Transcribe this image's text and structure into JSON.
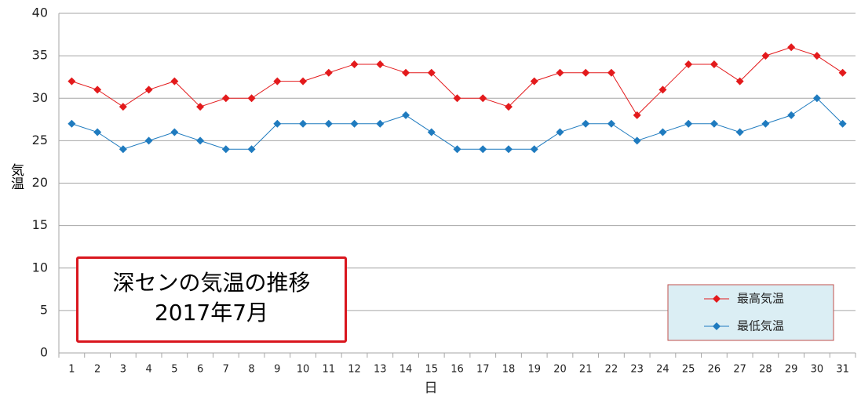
{
  "chart_data": {
    "type": "line",
    "title": "深センの気温の推移",
    "subtitle": "2017年7月",
    "x_label": "日",
    "y_label": "気温",
    "categories": [
      "1",
      "2",
      "3",
      "4",
      "5",
      "6",
      "7",
      "8",
      "9",
      "10",
      "11",
      "12",
      "13",
      "14",
      "15",
      "16",
      "17",
      "18",
      "19",
      "20",
      "21",
      "22",
      "23",
      "24",
      "25",
      "26",
      "27",
      "28",
      "29",
      "30",
      "31"
    ],
    "series": [
      {
        "name": "最高気温",
        "color": "#e31a1c",
        "values": [
          32,
          31,
          29,
          31,
          32,
          29,
          30,
          30,
          32,
          32,
          33,
          34,
          34,
          33,
          33,
          30,
          30,
          29,
          32,
          33,
          33,
          33,
          28,
          31,
          34,
          34,
          32,
          35,
          36,
          35,
          33
        ]
      },
      {
        "name": "最低気温",
        "color": "#1f7bbf",
        "values": [
          27,
          26,
          24,
          25,
          26,
          25,
          24,
          24,
          27,
          27,
          27,
          27,
          27,
          28,
          26,
          24,
          24,
          24,
          24,
          26,
          27,
          27,
          25,
          26,
          27,
          27,
          26,
          27,
          28,
          30,
          27
        ]
      }
    ],
    "ylim": [
      0,
      40
    ],
    "yticks": [
      0,
      5,
      10,
      15,
      20,
      25,
      30,
      35,
      40
    ],
    "grid": true,
    "legend": "bottom-right"
  }
}
